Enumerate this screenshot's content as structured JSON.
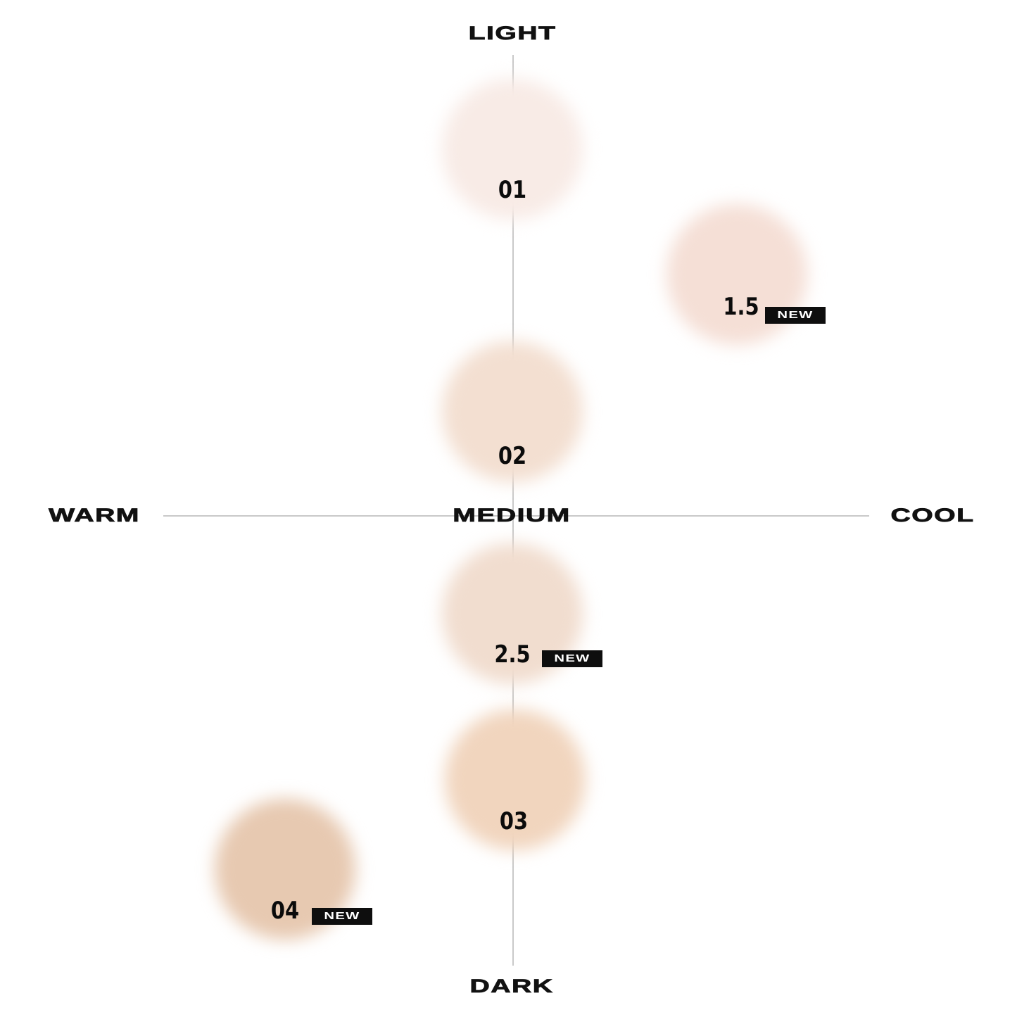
{
  "axes": {
    "top": "LIGHT",
    "bottom": "DARK",
    "left": "WARM",
    "right": "COOL",
    "center": "MEDIUM"
  },
  "badge_label": "NEW",
  "shades": [
    {
      "label": "01",
      "is_new": false,
      "color": "#f8ebe6"
    },
    {
      "label": "1.5",
      "is_new": true,
      "color": "#f5dfd6"
    },
    {
      "label": "02",
      "is_new": false,
      "color": "#f3dfd1"
    },
    {
      "label": "2.5",
      "is_new": true,
      "color": "#f1ddcf"
    },
    {
      "label": "03",
      "is_new": false,
      "color": "#f1d5be"
    },
    {
      "label": "04",
      "is_new": true,
      "color": "#e7c9b1"
    }
  ]
}
